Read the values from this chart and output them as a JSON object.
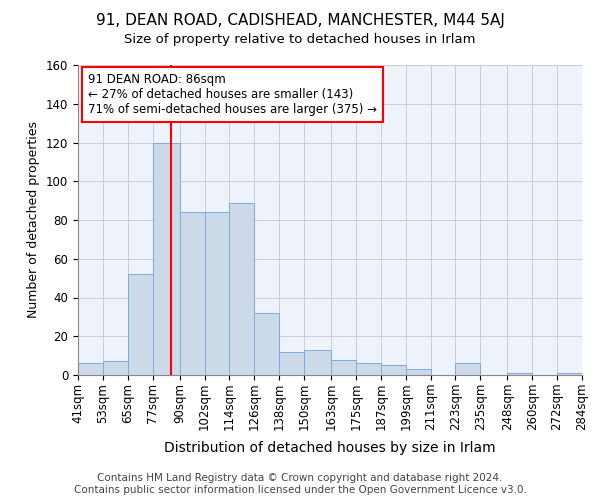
{
  "title1": "91, DEAN ROAD, CADISHEAD, MANCHESTER, M44 5AJ",
  "title2": "Size of property relative to detached houses in Irlam",
  "xlabel": "Distribution of detached houses by size in Irlam",
  "ylabel": "Number of detached properties",
  "footer": "Contains HM Land Registry data © Crown copyright and database right 2024.\nContains public sector information licensed under the Open Government Licence v3.0.",
  "bin_edges": [
    41,
    53,
    65,
    77,
    90,
    102,
    114,
    126,
    138,
    150,
    163,
    175,
    187,
    199,
    211,
    223,
    235,
    248,
    260,
    272,
    284
  ],
  "bar_heights": [
    6,
    7,
    52,
    120,
    84,
    84,
    89,
    32,
    12,
    13,
    8,
    6,
    5,
    3,
    0,
    6,
    0,
    1,
    0,
    1
  ],
  "bar_color": "#ccd9e8",
  "bar_edge_color": "#7aabe0",
  "red_line_x": 86,
  "annotation_text": "91 DEAN ROAD: 86sqm\n← 27% of detached houses are smaller (143)\n71% of semi-detached houses are larger (375) →",
  "annotation_fontsize": 8.5,
  "ylim": [
    0,
    160
  ],
  "yticks": [
    0,
    20,
    40,
    60,
    80,
    100,
    120,
    140,
    160
  ],
  "background_color": "#eef2fb",
  "grid_color": "#c0c8d8",
  "title1_fontsize": 11,
  "title2_fontsize": 9.5,
  "xlabel_fontsize": 10,
  "ylabel_fontsize": 9,
  "footer_fontsize": 7.5,
  "tick_labelsize": 8.5
}
